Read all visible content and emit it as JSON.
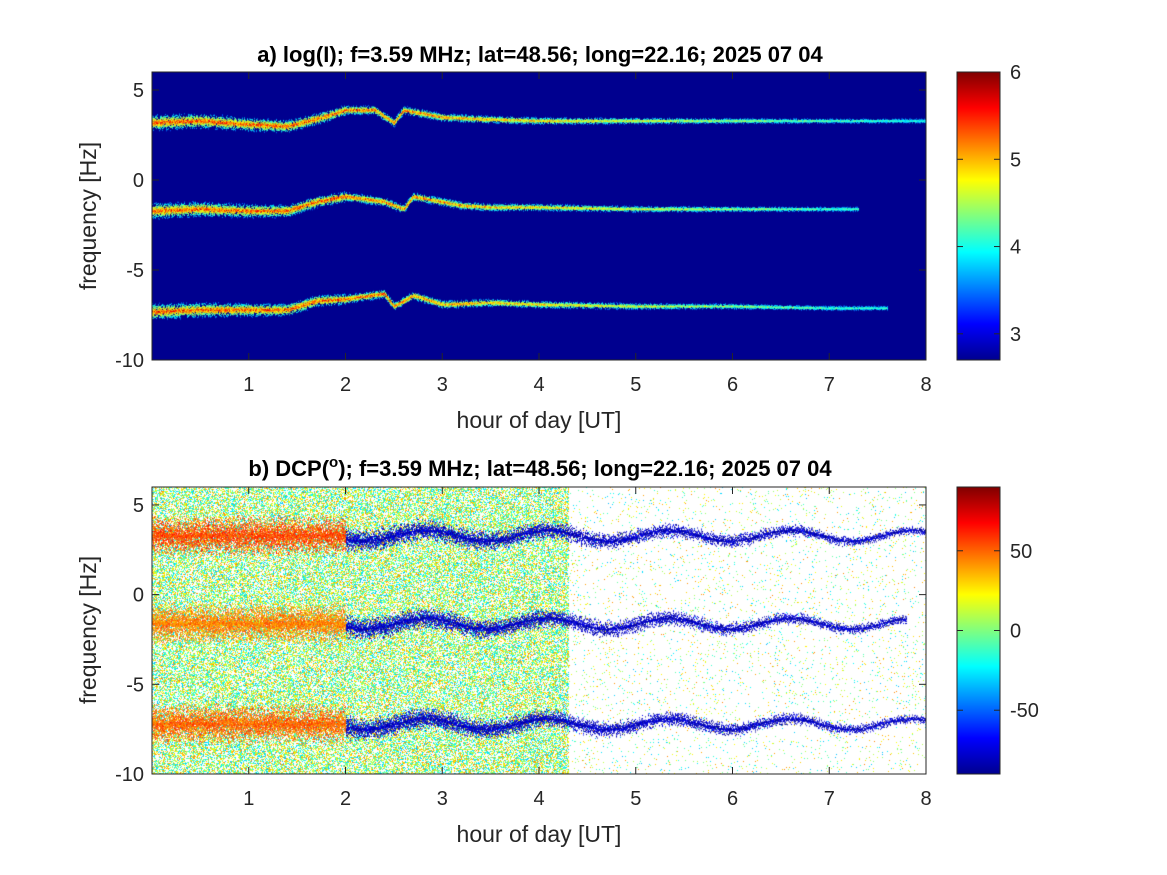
{
  "chart_data": [
    {
      "type": "heatmap",
      "title": "a) log(I); f=3.59 MHz;  lat=48.56; long=22.16; 2025 07 04",
      "xlabel": "hour of day [UT]",
      "ylabel": "frequency [Hz]",
      "xlim": [
        0,
        8
      ],
      "ylim": [
        -10,
        6
      ],
      "xticks": [
        1,
        2,
        3,
        4,
        5,
        6,
        7,
        8
      ],
      "yticks": [
        -10,
        -5,
        0,
        5
      ],
      "colorbar": {
        "colormap": "jet",
        "range": [
          2.7,
          6
        ],
        "ticks": [
          3,
          4,
          5,
          6
        ]
      },
      "background": "#00008f",
      "grid": false,
      "traces": [
        {
          "base_frequency": 3.2,
          "points": [
            [
              0,
              3.2
            ],
            [
              0.5,
              3.3
            ],
            [
              1.0,
              3.1
            ],
            [
              1.4,
              3.0
            ],
            [
              1.7,
              3.4
            ],
            [
              2.0,
              3.9
            ],
            [
              2.3,
              3.9
            ],
            [
              2.5,
              3.2
            ],
            [
              2.6,
              3.9
            ],
            [
              3.0,
              3.5
            ],
            [
              3.4,
              3.4
            ],
            [
              4.0,
              3.3
            ],
            [
              5.0,
              3.3
            ],
            [
              6.0,
              3.3
            ],
            [
              7.0,
              3.3
            ],
            [
              8.0,
              3.3
            ]
          ],
          "end_hour": 8.0
        },
        {
          "base_frequency": -1.7,
          "points": [
            [
              0,
              -1.7
            ],
            [
              0.5,
              -1.6
            ],
            [
              1.0,
              -1.7
            ],
            [
              1.4,
              -1.7
            ],
            [
              1.7,
              -1.2
            ],
            [
              2.0,
              -0.9
            ],
            [
              2.4,
              -1.2
            ],
            [
              2.6,
              -1.6
            ],
            [
              2.7,
              -0.9
            ],
            [
              3.2,
              -1.4
            ],
            [
              3.5,
              -1.5
            ],
            [
              4.0,
              -1.5
            ],
            [
              5.0,
              -1.6
            ],
            [
              6.0,
              -1.6
            ],
            [
              7.0,
              -1.6
            ],
            [
              7.3,
              -1.6
            ]
          ],
          "end_hour": 7.3
        },
        {
          "base_frequency": -7.2,
          "points": [
            [
              0,
              -7.3
            ],
            [
              0.5,
              -7.2
            ],
            [
              1.0,
              -7.2
            ],
            [
              1.4,
              -7.2
            ],
            [
              1.7,
              -6.7
            ],
            [
              2.0,
              -6.6
            ],
            [
              2.4,
              -6.3
            ],
            [
              2.5,
              -7.0
            ],
            [
              2.7,
              -6.4
            ],
            [
              3.0,
              -6.9
            ],
            [
              3.5,
              -6.8
            ],
            [
              4.0,
              -6.9
            ],
            [
              5.0,
              -7.0
            ],
            [
              6.0,
              -7.0
            ],
            [
              7.0,
              -7.1
            ],
            [
              7.6,
              -7.1
            ]
          ],
          "end_hour": 7.6
        }
      ]
    },
    {
      "type": "heatmap",
      "title_prefix": "b) DCP(",
      "title_sup": "o",
      "title_suffix": "); f=3.59 MHz;  lat=48.56; long=22.16; 2025 07 04",
      "xlabel": "hour of day [UT]",
      "ylabel": "frequency [Hz]",
      "xlim": [
        0,
        8
      ],
      "ylim": [
        -10,
        6
      ],
      "xticks": [
        1,
        2,
        3,
        4,
        5,
        6,
        7,
        8
      ],
      "yticks": [
        -10,
        -5,
        0,
        5
      ],
      "colorbar": {
        "colormap": "jet",
        "range": [
          -90,
          90
        ],
        "ticks": [
          -50,
          0,
          50
        ]
      },
      "background": "#ffffff",
      "noise_until_hour": 4.3,
      "grid": false,
      "traces": [
        {
          "base_frequency": 3.3,
          "early_value": 55,
          "late_value": -80,
          "end_hour": 8.0
        },
        {
          "base_frequency": -1.6,
          "early_value": 45,
          "late_value": -80,
          "end_hour": 7.8
        },
        {
          "base_frequency": -7.2,
          "early_value": 50,
          "late_value": -80,
          "end_hour": 8.0
        }
      ]
    }
  ]
}
